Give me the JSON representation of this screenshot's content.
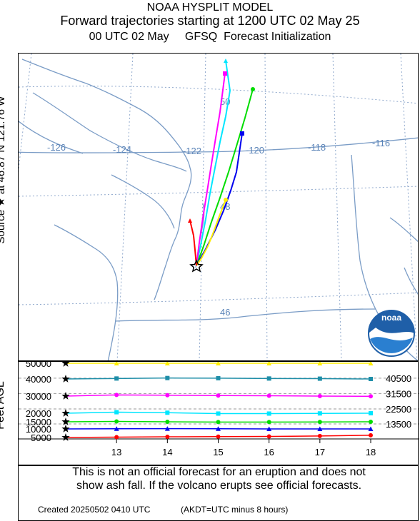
{
  "header": {
    "line1": "NOAA HYSPLIT MODEL",
    "line2": "Forward trajectories starting at 1200 UTC 02 May 25",
    "line3": "00 UTC 02 May     GFSQ  Forecast Initialization"
  },
  "map": {
    "source_label": "Source ★  at   46.87 N  121.76 W",
    "longitude_labels": [
      "-126",
      "-124",
      "-122",
      "-120",
      "-118",
      "-116"
    ],
    "latitude_labels": [
      "50",
      "48",
      "46"
    ],
    "logo_text": "noaa",
    "colors": {
      "coast": "#7a9cc6",
      "grid": "#8fa8cc"
    },
    "source": {
      "lat": 46.87,
      "lon": -121.76
    },
    "trajectories": [
      {
        "color": "#00e6ff",
        "marker": "triangle"
      },
      {
        "color": "#ff00ff",
        "marker": "square"
      },
      {
        "color": "#00dd00",
        "marker": "circle"
      },
      {
        "color": "#0000ee",
        "marker": "square"
      },
      {
        "color": "#ffee00",
        "marker": "circle"
      },
      {
        "color": "#ff0000",
        "marker": "triangle"
      }
    ]
  },
  "height_panel": {
    "ylabel": "Feet AGL",
    "y_ticks": [
      "50000",
      "40000",
      "30000",
      "20000",
      "15000",
      "10000",
      "5000"
    ],
    "x_ticks": [
      "13",
      "14",
      "15",
      "16",
      "17",
      "18"
    ],
    "right_labels": [
      "40500",
      "31500",
      "22500",
      "13500"
    ]
  },
  "chart_data": {
    "type": "line",
    "xlabel": "",
    "ylabel": "Feet AGL",
    "x": [
      12,
      13,
      14,
      15,
      16,
      17,
      18
    ],
    "ylim": [
      5000,
      50000
    ],
    "series": [
      {
        "color": "#ffee00",
        "values": [
          50000,
          50300,
          50600,
          50500,
          50300,
          50200,
          50100
        ]
      },
      {
        "color": "#1e8ea8",
        "values": [
          40000,
          40300,
          40600,
          40500,
          40300,
          40200,
          40000
        ]
      },
      {
        "color": "#ff00ff",
        "values": [
          30000,
          30700,
          30500,
          30300,
          30200,
          30000,
          29900
        ]
      },
      {
        "color": "#00e6ff",
        "values": [
          20000,
          20600,
          20300,
          19800,
          19800,
          19900,
          20000
        ]
      },
      {
        "color": "#00dd00",
        "values": [
          15000,
          15200,
          15000,
          14800,
          14800,
          14900,
          15000
        ]
      },
      {
        "color": "#0000ee",
        "values": [
          10000,
          10100,
          10200,
          10100,
          10000,
          10000,
          10000
        ]
      },
      {
        "color": "#ff0000",
        "values": [
          5000,
          5200,
          5400,
          5500,
          5600,
          5900,
          6300
        ]
      }
    ]
  },
  "note": {
    "line1": "This is not an official forecast for an eruption and does not",
    "line2": "show ash fall. If the volcano erupts see official forecasts."
  },
  "footer": {
    "created": "Created 20250502 0410 UTC",
    "timezone": "(AKDT=UTC minus 8 hours)"
  }
}
